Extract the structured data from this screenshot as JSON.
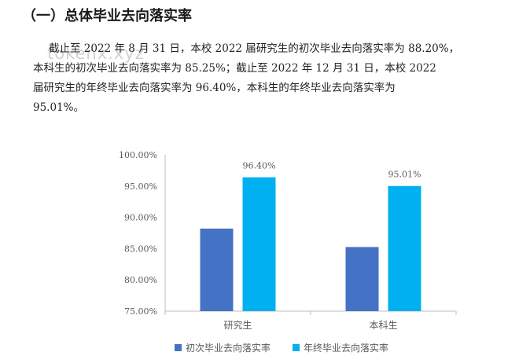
{
  "heading": "（一）总体毕业去向落实率",
  "paragraph": {
    "line1": "截止至 2022 年 8 月 31 日，本校 2022 届研究生的初次毕业去向落实率为 88.20%，",
    "line2": "本科生的初次毕业去向落实率为 85.25%；截止至 2022 年 12 月 31 日，本校 2022",
    "line3": "届研究生的年终毕业去向落实率为 96.40%，本科生的年终毕业去向落实率为",
    "line4": "95.01%。"
  },
  "watermark": "tokenx.xyz",
  "colors": {
    "series1": "#4472C4",
    "series2": "#00B0F0",
    "axis": "#bfbfbf"
  },
  "chart_data": {
    "type": "bar",
    "title": "",
    "xlabel": "",
    "ylabel": "",
    "categories": [
      "研究生",
      "本科生"
    ],
    "series": [
      {
        "name": "初次毕业去向落实率",
        "values": [
          88.2,
          85.25
        ],
        "data_labels": [
          "",
          ""
        ]
      },
      {
        "name": "年终毕业去向落实率",
        "values": [
          96.4,
          95.01
        ],
        "data_labels": [
          "96.40%",
          "95.01%"
        ]
      }
    ],
    "ylim": [
      75,
      100
    ],
    "yticks": [
      "75.00%",
      "80.00%",
      "85.00%",
      "90.00%",
      "95.00%",
      "100.00%"
    ],
    "ytick_values": [
      75,
      80,
      85,
      90,
      95,
      100
    ],
    "grid": false,
    "legend_position": "bottom"
  }
}
